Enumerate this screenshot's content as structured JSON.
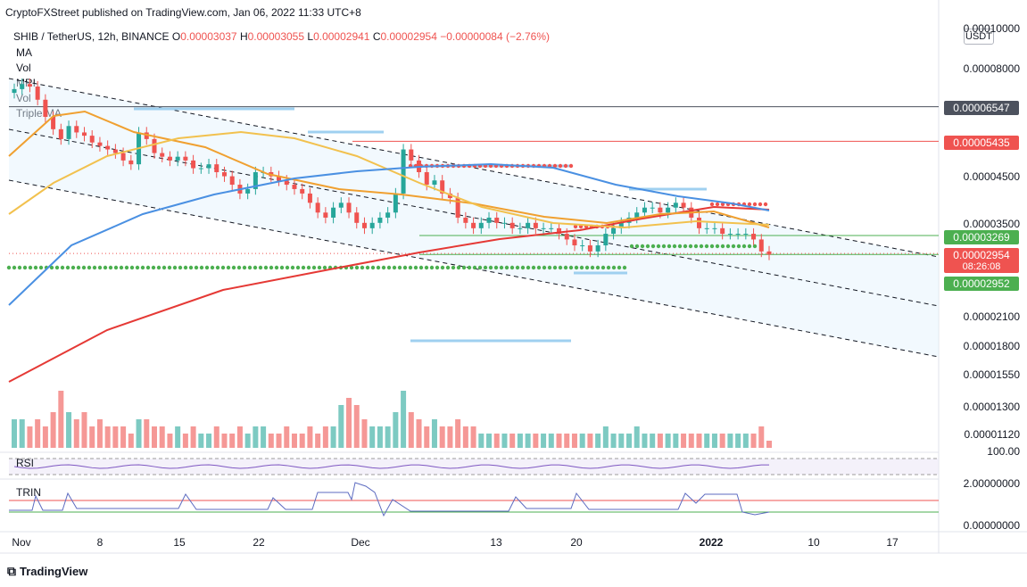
{
  "header": {
    "publisher_line": "CryptoFXStreet published on TradingView.com, Jan 06, 2022 11:33 UTC+8"
  },
  "symbol": {
    "name": "SHIB / TetherUS, 12h, BINANCE",
    "o_label": "O",
    "o_value": "0.00003037",
    "h_label": "H",
    "h_value": "0.00003055",
    "l_label": "L",
    "l_value": "0.00002941",
    "c_label": "C",
    "c_value": "0.00002954",
    "change": "−0.00000084 (−2.76%)"
  },
  "indicators": [
    "MA",
    "Vol",
    "MRI",
    "Vol",
    "Triple MA"
  ],
  "currency": "USDT",
  "price_axis_labels": [
    "0.00010000",
    "0.00008000",
    "0.00004500",
    "0.00003500",
    "0.00002100",
    "0.00001800",
    "0.00001550",
    "0.00001300",
    "0.00001120"
  ],
  "badges": {
    "resistance_high": "0.00006547",
    "resistance_mid": "0.00005435",
    "resistance_low": "0.00003269",
    "last_price": "0.00002954",
    "countdown": "08:26:08",
    "support": "0.00002952"
  },
  "colors": {
    "up": "#26a69a",
    "down": "#ef5350",
    "ma_red": "#e53935",
    "ma_orange": "#f0a030",
    "ma_yellow": "#f2c14e",
    "ma_blue": "#4a90e2",
    "dots_red": "#ef5350",
    "dots_green": "#4caf50",
    "dark_badge": "#4d525e"
  },
  "rsi": {
    "label": "RSI",
    "tick": "100.00"
  },
  "trin": {
    "label": "TRIN",
    "ticks": [
      "2.00000000",
      "0.00000000"
    ]
  },
  "x_axis_labels": [
    {
      "label": "Nov",
      "bold": false
    },
    {
      "label": "8",
      "bold": false
    },
    {
      "label": "15",
      "bold": false
    },
    {
      "label": "22",
      "bold": false
    },
    {
      "label": "Dec",
      "bold": false
    },
    {
      "label": "13",
      "bold": false
    },
    {
      "label": "20",
      "bold": false
    },
    {
      "label": "2022",
      "bold": true
    },
    {
      "label": "10",
      "bold": false
    },
    {
      "label": "17",
      "bold": false
    }
  ],
  "footer": {
    "brand": "TradingView"
  },
  "chart_data": {
    "type": "candlestick",
    "symbol": "SHIB / TetherUS",
    "interval": "12h",
    "exchange": "BINANCE",
    "ohlc_last": {
      "open": 3.037e-05,
      "high": 3.055e-05,
      "low": 2.941e-05,
      "close": 2.954e-05
    },
    "close_series_approx": [
      7.2e-05,
      7.4e-05,
      7.3e-05,
      6.8e-05,
      6.2e-05,
      5.8e-05,
      5.5e-05,
      5.9e-05,
      5.7e-05,
      5.6e-05,
      5.4e-05,
      5.3e-05,
      5.2e-05,
      5.1e-05,
      4.9e-05,
      4.8e-05,
      5.7e-05,
      5.5e-05,
      5.1e-05,
      5e-05,
      4.9e-05,
      5e-05,
      4.9e-05,
      4.7e-05,
      4.7e-05,
      4.8e-05,
      4.6e-05,
      4.5e-05,
      4.3e-05,
      4.1e-05,
      4.2e-05,
      4.6e-05,
      4.6e-05,
      4.5e-05,
      4.4e-05,
      4.3e-05,
      4.2e-05,
      4.1e-05,
      3.9e-05,
      3.7e-05,
      3.6e-05,
      3.8e-05,
      3.9e-05,
      3.7e-05,
      3.5e-05,
      3.4e-05,
      3.5e-05,
      3.6e-05,
      3.7e-05,
      4.1e-05,
      5.2e-05,
      4.9e-05,
      4.6e-05,
      4.3e-05,
      4.4e-05,
      4.1e-05,
      4e-05,
      3.6e-05,
      3.5e-05,
      3.4e-05,
      3.5e-05,
      3.6e-05,
      3.5e-05,
      3.5e-05,
      3.4e-05,
      3.4e-05,
      3.5e-05,
      3.4e-05,
      3.4e-05,
      3.4e-05,
      3.3e-05,
      3.2e-05,
      3.1e-05,
      3.1e-05,
      3e-05,
      3.1e-05,
      3.3e-05,
      3.4e-05,
      3.5e-05,
      3.6e-05,
      3.7e-05,
      3.8e-05,
      3.8e-05,
      3.7e-05,
      3.8e-05,
      3.9e-05,
      3.8e-05,
      3.6e-05,
      3.4e-05,
      3.4e-05,
      3.4e-05,
      3.3e-05,
      3.3e-05,
      3.3e-05,
      3.3e-05,
      3.2e-05,
      3e-05,
      2.95e-05
    ],
    "levels": [
      6.547e-05,
      5.435e-05,
      3.269e-05,
      2.952e-05
    ],
    "last_price": 2.954e-05,
    "moving_averages": [
      "red",
      "orange",
      "yellow",
      "blue"
    ],
    "volume_approx": [
      4,
      4,
      3,
      4,
      3,
      5,
      8,
      5,
      4,
      5,
      3,
      4,
      3,
      3,
      3,
      2,
      4,
      4,
      3,
      3,
      2,
      3,
      2,
      3,
      2,
      2,
      3,
      2,
      2,
      3,
      2,
      3,
      3,
      2,
      2,
      3,
      2,
      2,
      3,
      2,
      3,
      3,
      6,
      7,
      6,
      4,
      3,
      3,
      3,
      5,
      8,
      5,
      4,
      3,
      4,
      3,
      3,
      4,
      3,
      3,
      2,
      2,
      2,
      2,
      2,
      2,
      2,
      2,
      2,
      2,
      2,
      2,
      2,
      2,
      2,
      2,
      3,
      2,
      2,
      2,
      3,
      2,
      2,
      2,
      2,
      2,
      2,
      2,
      2,
      2,
      2,
      2,
      2,
      2,
      2,
      2,
      3,
      1
    ]
  }
}
